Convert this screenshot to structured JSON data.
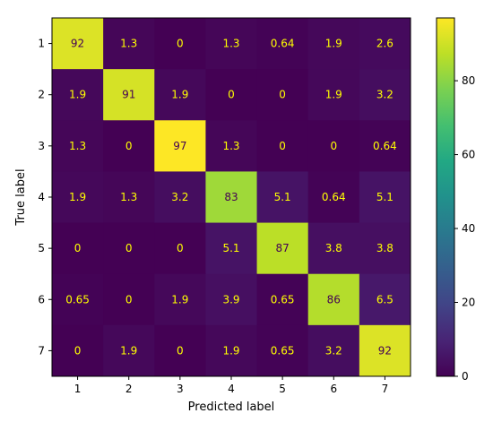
{
  "chart_data": {
    "type": "heatmap",
    "title": "",
    "xlabel": "Predicted label",
    "ylabel": "True label",
    "x_categories": [
      "1",
      "2",
      "3",
      "4",
      "5",
      "6",
      "7"
    ],
    "y_categories": [
      "1",
      "2",
      "3",
      "4",
      "5",
      "6",
      "7"
    ],
    "values": [
      [
        92,
        1.3,
        0,
        1.3,
        0.64,
        1.9,
        2.6
      ],
      [
        1.9,
        91,
        1.9,
        0,
        0,
        1.9,
        3.2
      ],
      [
        1.3,
        0,
        97,
        1.3,
        0,
        0,
        0.64
      ],
      [
        1.9,
        1.3,
        3.2,
        83,
        5.1,
        0.64,
        5.1
      ],
      [
        0,
        0,
        0,
        5.1,
        87,
        3.8,
        3.8
      ],
      [
        0.65,
        0,
        1.9,
        3.9,
        0.65,
        86,
        6.5
      ],
      [
        0,
        1.9,
        0,
        1.9,
        0.65,
        3.2,
        92
      ]
    ],
    "labels": [
      [
        "92",
        "1.3",
        "0",
        "1.3",
        "0.64",
        "1.9",
        "2.6"
      ],
      [
        "1.9",
        "91",
        "1.9",
        "0",
        "0",
        "1.9",
        "3.2"
      ],
      [
        "1.3",
        "0",
        "97",
        "1.3",
        "0",
        "0",
        "0.64"
      ],
      [
        "1.9",
        "1.3",
        "3.2",
        "83",
        "5.1",
        "0.64",
        "5.1"
      ],
      [
        "0",
        "0",
        "0",
        "5.1",
        "87",
        "3.8",
        "3.8"
      ],
      [
        "0.65",
        "0",
        "1.9",
        "3.9",
        "0.65",
        "86",
        "6.5"
      ],
      [
        "0",
        "1.9",
        "0",
        "1.9",
        "0.65",
        "3.2",
        "92"
      ]
    ],
    "colormap": "viridis",
    "vmin": 0,
    "vmax": 97,
    "colorbar_ticks": [
      0,
      20,
      40,
      60,
      80
    ],
    "colorbar_tick_labels": [
      "0",
      "20",
      "40",
      "60",
      "80"
    ],
    "text_color_light": "#ffff00",
    "text_color_dark": "#440154",
    "grid": false
  }
}
